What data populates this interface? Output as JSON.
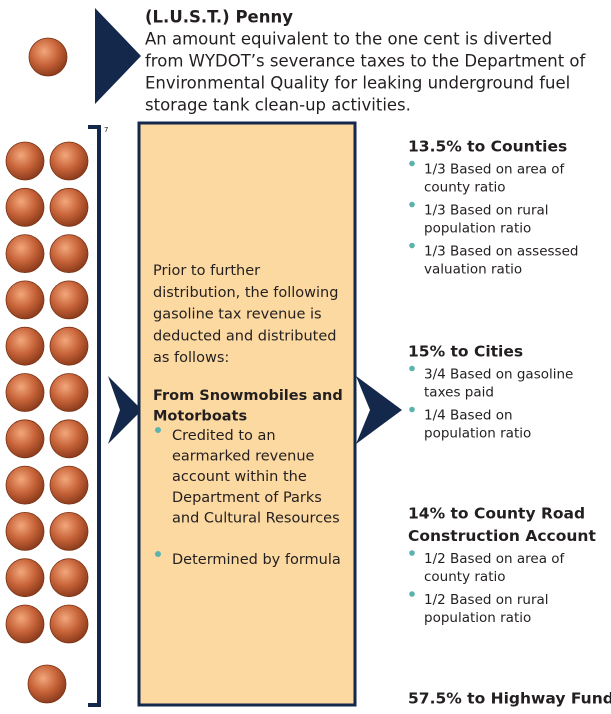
{
  "lust": {
    "title": "(L.U.S.T.) Penny",
    "text_lines": [
      "An amount equivalent to the one cent is diverted",
      "from WYDOT’s severance taxes to the Department of",
      "Environmental Quality for leaking underground fuel",
      "storage tank clean-up activities."
    ]
  },
  "footnote_mark": "7",
  "box": {
    "intro_lines": [
      "Prior to further",
      "distribution, the following",
      "gasoline tax revenue is",
      "deducted and distributed",
      "as follows:"
    ],
    "heading_lines": [
      "From Snowmobiles and",
      "Motorboats"
    ],
    "bullets": [
      {
        "lines": [
          "Credited to an",
          "earmarked revenue",
          "account within the",
          "Department of Parks",
          "and Cultural Resources"
        ]
      },
      {
        "lines": [
          "Determined by formula"
        ]
      }
    ]
  },
  "distributions": [
    {
      "heading_lines": [
        "13.5% to Counties"
      ],
      "bullets": [
        {
          "lines": [
            "1/3 Based on area of",
            "county ratio"
          ]
        },
        {
          "lines": [
            "1/3 Based on rural",
            "population ratio"
          ]
        },
        {
          "lines": [
            "1/3 Based on assessed",
            "valuation ratio"
          ]
        }
      ]
    },
    {
      "heading_lines": [
        "15% to Cities"
      ],
      "bullets": [
        {
          "lines": [
            "3/4 Based on gasoline",
            "taxes paid"
          ]
        },
        {
          "lines": [
            "1/4 Based on",
            "population ratio"
          ]
        }
      ]
    },
    {
      "heading_lines": [
        "14% to County Road",
        "Construction Account"
      ],
      "bullets": [
        {
          "lines": [
            "1/2 Based on area of",
            "county ratio"
          ]
        },
        {
          "lines": [
            "1/2 Based on rural",
            "population ratio"
          ]
        }
      ]
    },
    {
      "heading_lines": [
        "57.5% to Highway Fund"
      ],
      "bullets": []
    }
  ]
}
